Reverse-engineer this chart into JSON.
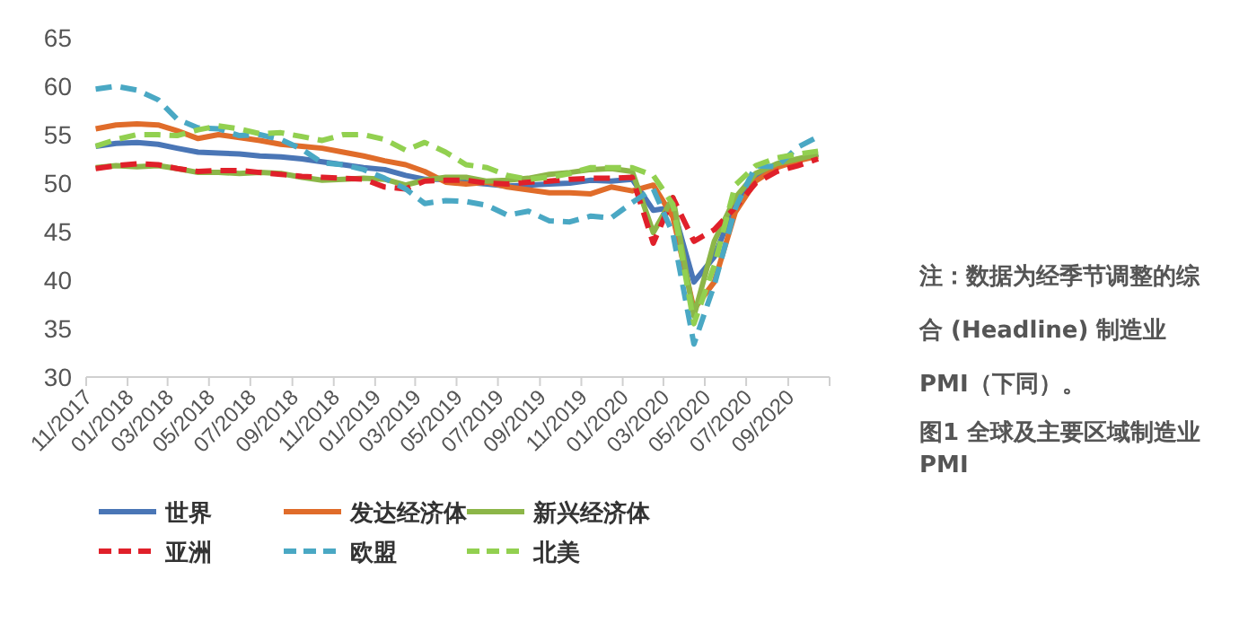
{
  "chart_data": {
    "type": "line",
    "title": "图1  全球及主要区域制造业PMI",
    "annotations": [
      "注：数据为经季节调整的综合 (Headline) 制造业PMI（下同）。"
    ],
    "x": [
      "2017-11-15",
      "2017-12-15",
      "2018-01-15",
      "2018-02-15",
      "2018-03-15",
      "2018-04-15",
      "2018-05-15",
      "2018-06-15",
      "2018-07-15",
      "2018-08-15",
      "2018-09-15",
      "2018-10-15",
      "2018-11-15",
      "2018-12-15",
      "2019-01-15",
      "2019-02-15",
      "2019-03-15",
      "2019-04-15",
      "2019-05-15",
      "2019-06-15",
      "2019-07-15",
      "2019-08-15",
      "2019-09-15",
      "2019-10-15",
      "2019-11-15",
      "2019-12-15",
      "2020-01-15",
      "2020-02-15",
      "2020-03-15",
      "2020-04-15",
      "2020-05-15",
      "2020-06-15",
      "2020-07-15",
      "2020-08-15",
      "2020-09-15",
      "2020-10-15"
    ],
    "series": [
      {
        "name": "世界",
        "color": "#4a76b6",
        "line_style": "solid",
        "values": [
          53.8,
          54.1,
          54.2,
          54.0,
          53.6,
          53.2,
          53.1,
          53.0,
          52.8,
          52.7,
          52.5,
          52.2,
          51.9,
          51.6,
          51.4,
          50.8,
          50.4,
          50.4,
          50.1,
          49.9,
          49.7,
          49.8,
          49.9,
          50.0,
          50.3,
          50.2,
          50.4,
          47.2,
          47.5,
          39.8,
          42.4,
          47.9,
          50.6,
          51.8,
          52.4,
          53.0
        ]
      },
      {
        "name": "发达经济体",
        "color": "#e06c2a",
        "line_style": "solid",
        "values": [
          55.6,
          56.0,
          56.1,
          56.0,
          55.4,
          54.6,
          55.0,
          54.7,
          54.4,
          54.0,
          53.8,
          53.6,
          53.2,
          52.8,
          52.3,
          51.9,
          51.2,
          50.1,
          49.9,
          50.1,
          49.6,
          49.3,
          49.0,
          49.0,
          48.9,
          49.6,
          49.2,
          49.8,
          46.5,
          37.0,
          39.8,
          47.0,
          50.2,
          51.6,
          52.3,
          52.8
        ]
      },
      {
        "name": "新兴经济体",
        "color": "#8cb648",
        "line_style": "solid",
        "values": [
          51.6,
          51.8,
          51.7,
          51.8,
          51.5,
          51.1,
          51.1,
          51.0,
          51.1,
          51.0,
          50.6,
          50.3,
          50.4,
          50.5,
          50.4,
          49.8,
          50.3,
          50.6,
          50.6,
          50.2,
          50.3,
          50.5,
          50.9,
          51.1,
          51.4,
          51.5,
          51.2,
          44.9,
          48.5,
          36.3,
          44.0,
          48.5,
          51.0,
          52.0,
          52.5,
          53.0
        ]
      },
      {
        "name": "亚洲",
        "color": "#e0202a",
        "line_style": "dashed",
        "values": [
          51.5,
          51.8,
          52.0,
          51.9,
          51.5,
          51.2,
          51.3,
          51.3,
          51.1,
          50.9,
          50.7,
          50.6,
          50.5,
          50.4,
          49.6,
          49.4,
          50.2,
          50.3,
          50.3,
          50.0,
          49.9,
          50.1,
          50.2,
          50.4,
          50.5,
          50.5,
          50.6,
          43.8,
          48.5,
          44.0,
          45.2,
          47.5,
          50.0,
          51.2,
          51.8,
          52.5
        ]
      },
      {
        "name": "欧盟",
        "color": "#4aa8c4",
        "line_style": "dashed",
        "values": [
          59.7,
          60.0,
          59.6,
          58.6,
          56.6,
          55.7,
          55.6,
          54.9,
          55.0,
          54.5,
          53.5,
          52.1,
          51.9,
          51.4,
          50.5,
          49.4,
          47.9,
          48.2,
          48.1,
          47.7,
          46.7,
          47.1,
          46.1,
          46.0,
          46.6,
          46.4,
          48.0,
          49.4,
          44.8,
          33.4,
          39.5,
          47.4,
          51.8,
          51.7,
          53.7,
          54.8
        ]
      },
      {
        "name": "北美",
        "color": "#92d050",
        "line_style": "dashed",
        "values": [
          53.8,
          54.5,
          55.0,
          55.0,
          54.9,
          55.5,
          55.9,
          55.6,
          55.1,
          55.2,
          54.8,
          54.4,
          55.0,
          55.0,
          54.5,
          53.4,
          54.2,
          53.2,
          51.9,
          51.6,
          50.8,
          50.4,
          50.6,
          51.0,
          51.6,
          51.6,
          51.6,
          50.8,
          47.8,
          35.5,
          41.5,
          49.8,
          51.8,
          52.6,
          53.0,
          53.3
        ]
      }
    ],
    "xlim": [
      "2017-11",
      "2020-11"
    ],
    "xticks": [
      {
        "value": "2017-11",
        "label": "11/2017"
      },
      {
        "value": "2018-01",
        "label": "01/2018"
      },
      {
        "value": "2018-03",
        "label": "03/2018"
      },
      {
        "value": "2018-05",
        "label": "05/2018"
      },
      {
        "value": "2018-07",
        "label": "07/2018"
      },
      {
        "value": "2018-09",
        "label": "09/2018"
      },
      {
        "value": "2018-11",
        "label": "11/2018"
      },
      {
        "value": "2019-01",
        "label": "01/2019"
      },
      {
        "value": "2019-03",
        "label": "03/2019"
      },
      {
        "value": "2019-05",
        "label": "05/2019"
      },
      {
        "value": "2019-07",
        "label": "07/2019"
      },
      {
        "value": "2019-09",
        "label": "09/2019"
      },
      {
        "value": "2019-11",
        "label": "11/2019"
      },
      {
        "value": "2020-01",
        "label": "01/2020"
      },
      {
        "value": "2020-03",
        "label": "03/2020"
      },
      {
        "value": "2020-05",
        "label": "05/2020"
      },
      {
        "value": "2020-07",
        "label": "07/2020"
      },
      {
        "value": "2020-09",
        "label": "09/2020"
      },
      {
        "value": "2020-11",
        "label": null
      }
    ],
    "ylim": [
      30,
      65
    ],
    "yticks": [
      30,
      35,
      40,
      45,
      50,
      55,
      60,
      65
    ],
    "legend": "bottom"
  }
}
